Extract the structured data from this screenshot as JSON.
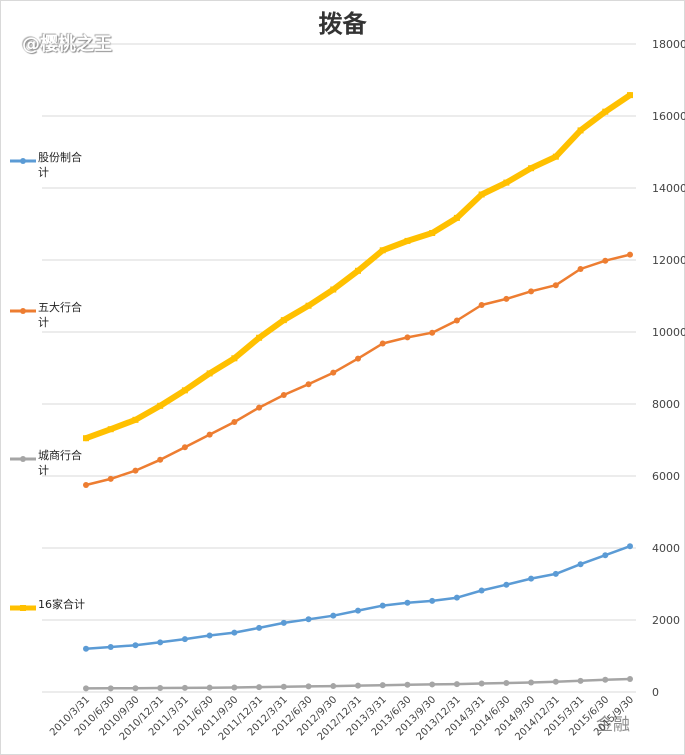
{
  "chart_data": {
    "type": "line",
    "title": "拨备",
    "xlabel": "",
    "ylabel": "",
    "ylim": [
      0,
      18000
    ],
    "yticks": [
      0,
      2000,
      4000,
      6000,
      8000,
      10000,
      12000,
      14000,
      16000,
      18000
    ],
    "grid": true,
    "legend_position": "left",
    "categories": [
      "2010/3/31",
      "2010/6/30",
      "2010/9/30",
      "2010/12/31",
      "2011/3/31",
      "2011/6/30",
      "2011/9/30",
      "2011/12/31",
      "2012/3/31",
      "2012/6/30",
      "2012/9/30",
      "2012/12/31",
      "2013/3/31",
      "2013/6/30",
      "2013/9/30",
      "2013/12/31",
      "2014/3/31",
      "2014/6/30",
      "2014/9/30",
      "2014/12/31",
      "2015/3/31",
      "2015/6/30",
      "2015/9/30"
    ],
    "series": [
      {
        "name": "股份制合计",
        "color": "#5b9bd5",
        "values": [
          1200,
          1250,
          1300,
          1380,
          1470,
          1570,
          1650,
          1780,
          1920,
          2020,
          2120,
          2260,
          2400,
          2480,
          2530,
          2620,
          2820,
          2980,
          3150,
          3280,
          3550,
          3800,
          4050
        ]
      },
      {
        "name": "五大行合计",
        "color": "#ed7d31",
        "values": [
          5750,
          5920,
          6150,
          6450,
          6800,
          7150,
          7500,
          7900,
          8250,
          8550,
          8870,
          9260,
          9680,
          9850,
          9980,
          10320,
          10750,
          10920,
          11130,
          11300,
          11750,
          11980,
          12150
        ]
      },
      {
        "name": "城商行合计",
        "color": "#a5a5a5",
        "values": [
          100,
          102,
          105,
          110,
          115,
          120,
          125,
          135,
          145,
          155,
          165,
          178,
          190,
          200,
          210,
          220,
          235,
          250,
          265,
          285,
          310,
          340,
          360
        ]
      },
      {
        "name": "16家合计",
        "color": "#ffc000",
        "values": [
          7050,
          7300,
          7560,
          7950,
          8380,
          8850,
          9270,
          9840,
          10330,
          10730,
          11180,
          11700,
          12270,
          12530,
          12750,
          13170,
          13820,
          14150,
          14550,
          14870,
          15600,
          16120,
          16580
        ]
      }
    ]
  },
  "watermark_top": "@樱桃之王",
  "watermark_bottom": "金融"
}
